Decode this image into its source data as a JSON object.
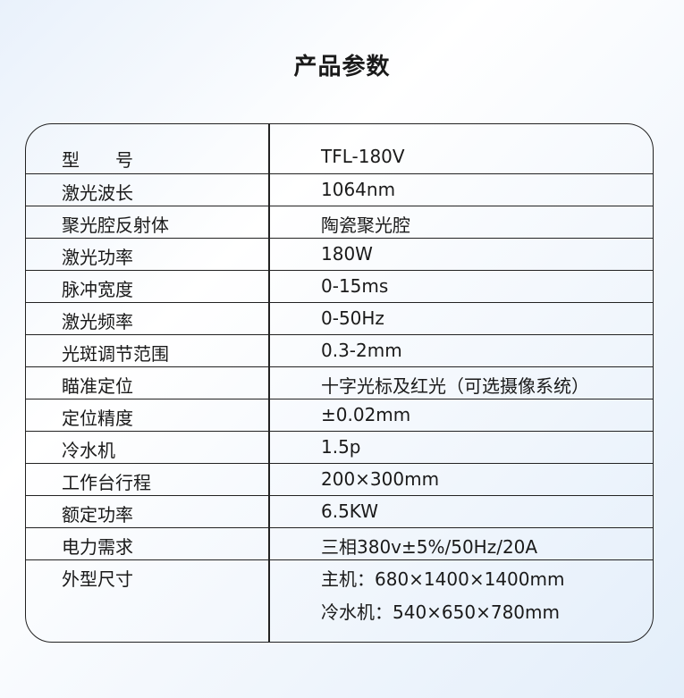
{
  "title": "产品参数",
  "rows": [
    {
      "label": "型　　号",
      "value": "TFL-180V"
    },
    {
      "label": "激光波长",
      "value": "1064nm"
    },
    {
      "label": "聚光腔反射体",
      "value": "陶瓷聚光腔"
    },
    {
      "label": "激光功率",
      "value": "180W"
    },
    {
      "label": "脉冲宽度",
      "value": "0-15ms"
    },
    {
      "label": "激光频率",
      "value": "0-50Hz"
    },
    {
      "label": "光斑调节范围",
      "value": "0.3-2mm"
    },
    {
      "label": "瞄准定位",
      "value": "十字光标及红光（可选摄像系统）"
    },
    {
      "label": "定位精度",
      "value": "±0.02mm"
    },
    {
      "label": "冷水机",
      "value": "1.5p"
    },
    {
      "label": "工作台行程",
      "value": "200×300mm"
    },
    {
      "label": "额定功率",
      "value": "6.5KW"
    },
    {
      "label": "电力需求",
      "value": "三相380v±5%/50Hz/20A"
    },
    {
      "label": "外型尺寸",
      "value": "主机：680×1400×1400mm",
      "value2": "冷水机：540×650×780mm"
    }
  ]
}
